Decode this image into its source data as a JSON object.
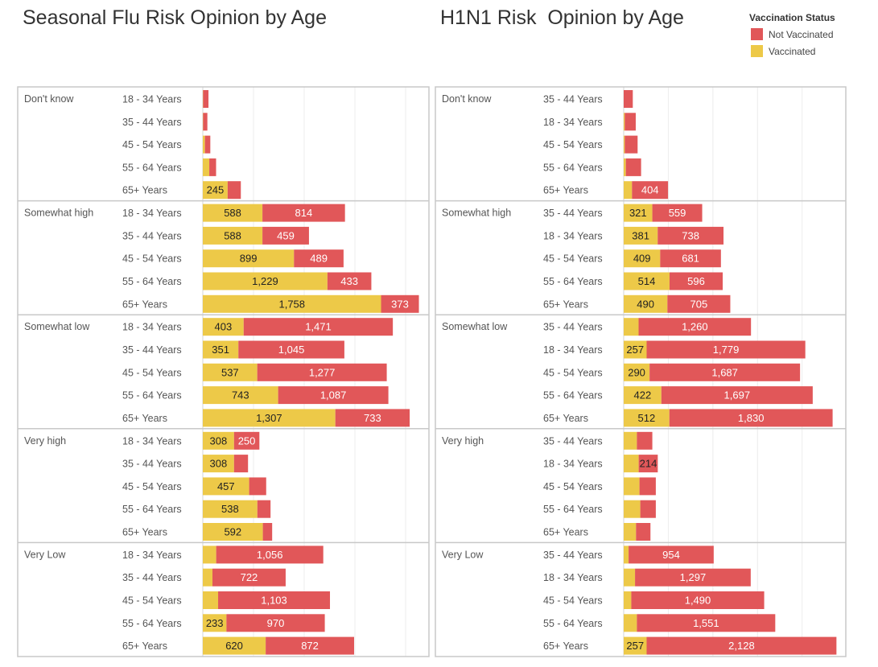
{
  "legend": {
    "title": "Vaccination Status",
    "items": [
      {
        "label": "Not Vaccinated",
        "color": "#e15759"
      },
      {
        "label": "Vaccinated",
        "color": "#edc948"
      }
    ]
  },
  "chart_data": [
    {
      "type": "bar",
      "orientation": "horizontal-stacked",
      "title": "Seasonal Flu Risk Opinion by Age",
      "xlim": [
        0,
        2230
      ],
      "gridlines": [
        0,
        500,
        1000,
        1500,
        2000
      ],
      "series": [
        "Vaccinated",
        "Not Vaccinated"
      ],
      "groups": [
        {
          "name": "Don't know",
          "rows": [
            {
              "age": "18 - 34 Years",
              "vaccinated": 3,
              "not_vaccinated": 53,
              "v_label": null,
              "nv_label": null
            },
            {
              "age": "35 - 44 Years",
              "vaccinated": 3,
              "not_vaccinated": 42,
              "v_label": null,
              "nv_label": null
            },
            {
              "age": "45 - 54 Years",
              "vaccinated": 21,
              "not_vaccinated": 53,
              "v_label": null,
              "nv_label": null
            },
            {
              "age": "55 - 64 Years",
              "vaccinated": 64,
              "not_vaccinated": 67,
              "v_label": null,
              "nv_label": null
            },
            {
              "age": "65+ Years",
              "vaccinated": 245,
              "not_vaccinated": 130,
              "v_label": "245",
              "nv_label": null
            }
          ]
        },
        {
          "name": "Somewhat high",
          "rows": [
            {
              "age": "18 - 34 Years",
              "vaccinated": 588,
              "not_vaccinated": 814,
              "v_label": "588",
              "nv_label": "814"
            },
            {
              "age": "35 - 44 Years",
              "vaccinated": 588,
              "not_vaccinated": 459,
              "v_label": "588",
              "nv_label": "459"
            },
            {
              "age": "45 - 54 Years",
              "vaccinated": 899,
              "not_vaccinated": 489,
              "v_label": "899",
              "nv_label": "489"
            },
            {
              "age": "55 - 64 Years",
              "vaccinated": 1229,
              "not_vaccinated": 433,
              "v_label": "1,229",
              "nv_label": "433"
            },
            {
              "age": "65+ Years",
              "vaccinated": 1758,
              "not_vaccinated": 373,
              "v_label": "1,758",
              "nv_label": "373"
            }
          ]
        },
        {
          "name": "Somewhat low",
          "rows": [
            {
              "age": "18 - 34 Years",
              "vaccinated": 403,
              "not_vaccinated": 1471,
              "v_label": "403",
              "nv_label": "1,471"
            },
            {
              "age": "35 - 44 Years",
              "vaccinated": 351,
              "not_vaccinated": 1045,
              "v_label": "351",
              "nv_label": "1,045"
            },
            {
              "age": "45 - 54 Years",
              "vaccinated": 537,
              "not_vaccinated": 1277,
              "v_label": "537",
              "nv_label": "1,277"
            },
            {
              "age": "55 - 64 Years",
              "vaccinated": 743,
              "not_vaccinated": 1087,
              "v_label": "743",
              "nv_label": "1,087"
            },
            {
              "age": "65+ Years",
              "vaccinated": 1307,
              "not_vaccinated": 733,
              "v_label": "1,307",
              "nv_label": "733"
            }
          ]
        },
        {
          "name": "Very high",
          "rows": [
            {
              "age": "18 - 34 Years",
              "vaccinated": 308,
              "not_vaccinated": 250,
              "v_label": "308",
              "nv_label": "250"
            },
            {
              "age": "35 - 44 Years",
              "vaccinated": 308,
              "not_vaccinated": 138,
              "v_label": "308",
              "nv_label": null
            },
            {
              "age": "45 - 54 Years",
              "vaccinated": 457,
              "not_vaccinated": 168,
              "v_label": "457",
              "nv_label": null
            },
            {
              "age": "55 - 64 Years",
              "vaccinated": 538,
              "not_vaccinated": 130,
              "v_label": "538",
              "nv_label": null
            },
            {
              "age": "65+ Years",
              "vaccinated": 592,
              "not_vaccinated": 92,
              "v_label": "592",
              "nv_label": null
            }
          ]
        },
        {
          "name": "Very Low",
          "rows": [
            {
              "age": "18 - 34 Years",
              "vaccinated": 132,
              "not_vaccinated": 1056,
              "v_label": null,
              "nv_label": "1,056"
            },
            {
              "age": "35 - 44 Years",
              "vaccinated": 95,
              "not_vaccinated": 722,
              "v_label": null,
              "nv_label": "722"
            },
            {
              "age": "45 - 54 Years",
              "vaccinated": 151,
              "not_vaccinated": 1103,
              "v_label": null,
              "nv_label": "1,103"
            },
            {
              "age": "55 - 64 Years",
              "vaccinated": 233,
              "not_vaccinated": 970,
              "v_label": "233",
              "nv_label": "970"
            },
            {
              "age": "65+ Years",
              "vaccinated": 620,
              "not_vaccinated": 872,
              "v_label": "620",
              "nv_label": "872"
            }
          ]
        }
      ]
    },
    {
      "type": "bar",
      "orientation": "horizontal-stacked",
      "title": "H1N1 Risk  Opinion by Age",
      "xlim": [
        0,
        2490
      ],
      "gridlines": [
        0,
        500,
        1000,
        1500,
        2000
      ],
      "series": [
        "Vaccinated",
        "Not Vaccinated"
      ],
      "groups": [
        {
          "name": "Don't know",
          "rows": [
            {
              "age": "35 - 44 Years",
              "vaccinated": 0,
              "not_vaccinated": 102,
              "v_label": null,
              "nv_label": null
            },
            {
              "age": "18 - 34 Years",
              "vaccinated": 12,
              "not_vaccinated": 123,
              "v_label": null,
              "nv_label": null
            },
            {
              "age": "45 - 54 Years",
              "vaccinated": 12,
              "not_vaccinated": 144,
              "v_label": null,
              "nv_label": null
            },
            {
              "age": "55 - 64 Years",
              "vaccinated": 24,
              "not_vaccinated": 171,
              "v_label": null,
              "nv_label": null
            },
            {
              "age": "65+ Years",
              "vaccinated": 93,
              "not_vaccinated": 404,
              "v_label": null,
              "nv_label": "404"
            }
          ]
        },
        {
          "name": "Somewhat high",
          "rows": [
            {
              "age": "35 - 44 Years",
              "vaccinated": 321,
              "not_vaccinated": 559,
              "v_label": "321",
              "nv_label": "559"
            },
            {
              "age": "18 - 34 Years",
              "vaccinated": 381,
              "not_vaccinated": 738,
              "v_label": "381",
              "nv_label": "738"
            },
            {
              "age": "45 - 54 Years",
              "vaccinated": 409,
              "not_vaccinated": 681,
              "v_label": "409",
              "nv_label": "681"
            },
            {
              "age": "55 - 64 Years",
              "vaccinated": 514,
              "not_vaccinated": 596,
              "v_label": "514",
              "nv_label": "596"
            },
            {
              "age": "65+ Years",
              "vaccinated": 490,
              "not_vaccinated": 705,
              "v_label": "490",
              "nv_label": "705"
            }
          ]
        },
        {
          "name": "Somewhat low",
          "rows": [
            {
              "age": "35 - 44 Years",
              "vaccinated": 167,
              "not_vaccinated": 1260,
              "v_label": null,
              "nv_label": "1,260"
            },
            {
              "age": "18 - 34 Years",
              "vaccinated": 257,
              "not_vaccinated": 1779,
              "v_label": "257",
              "nv_label": "1,779"
            },
            {
              "age": "45 - 54 Years",
              "vaccinated": 290,
              "not_vaccinated": 1687,
              "v_label": "290",
              "nv_label": "1,687"
            },
            {
              "age": "55 - 64 Years",
              "vaccinated": 422,
              "not_vaccinated": 1697,
              "v_label": "422",
              "nv_label": "1,697"
            },
            {
              "age": "65+ Years",
              "vaccinated": 512,
              "not_vaccinated": 1830,
              "v_label": "512",
              "nv_label": "1,830"
            }
          ]
        },
        {
          "name": "Very high",
          "rows": [
            {
              "age": "35 - 44 Years",
              "vaccinated": 148,
              "not_vaccinated": 173,
              "v_label": null,
              "nv_label": null
            },
            {
              "age": "18 - 34 Years",
              "vaccinated": 168,
              "not_vaccinated": 214,
              "v_label": null,
              "nv_label": "214"
            },
            {
              "age": "45 - 54 Years",
              "vaccinated": 177,
              "not_vaccinated": 183,
              "v_label": null,
              "nv_label": null
            },
            {
              "age": "55 - 64 Years",
              "vaccinated": 186,
              "not_vaccinated": 174,
              "v_label": null,
              "nv_label": null
            },
            {
              "age": "65+ Years",
              "vaccinated": 138,
              "not_vaccinated": 162,
              "v_label": null,
              "nv_label": null
            }
          ]
        },
        {
          "name": "Very Low",
          "rows": [
            {
              "age": "35 - 44 Years",
              "vaccinated": 55,
              "not_vaccinated": 954,
              "v_label": null,
              "nv_label": "954"
            },
            {
              "age": "18 - 34 Years",
              "vaccinated": 127,
              "not_vaccinated": 1297,
              "v_label": null,
              "nv_label": "1,297"
            },
            {
              "age": "45 - 54 Years",
              "vaccinated": 85,
              "not_vaccinated": 1490,
              "v_label": null,
              "nv_label": "1,490"
            },
            {
              "age": "55 - 64 Years",
              "vaccinated": 148,
              "not_vaccinated": 1551,
              "v_label": null,
              "nv_label": "1,551"
            },
            {
              "age": "65+ Years",
              "vaccinated": 257,
              "not_vaccinated": 2128,
              "v_label": "257",
              "nv_label": "2,128"
            }
          ]
        }
      ]
    }
  ]
}
